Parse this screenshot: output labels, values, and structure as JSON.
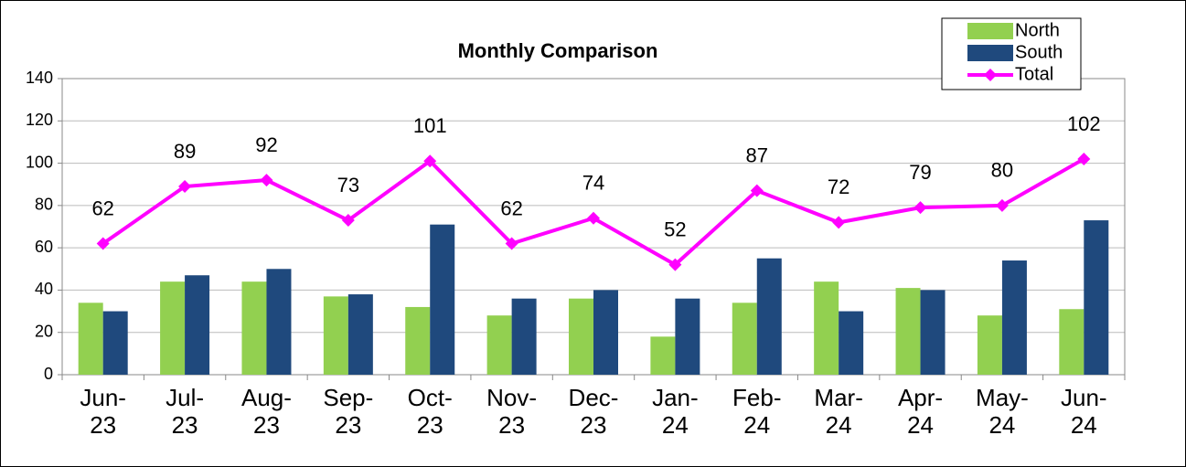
{
  "chart_data": {
    "type": "bar_line",
    "title": "Monthly Comparison",
    "categories": [
      "Jun-23",
      "Jul-23",
      "Aug-23",
      "Sep-23",
      "Oct-23",
      "Nov-23",
      "Dec-23",
      "Jan-24",
      "Feb-24",
      "Mar-24",
      "Apr-24",
      "May-24",
      "Jun-24"
    ],
    "series": [
      {
        "name": "North",
        "type": "bar",
        "color": "#92d050",
        "values": [
          34,
          44,
          44,
          37,
          32,
          28,
          36,
          18,
          34,
          44,
          41,
          28,
          31
        ]
      },
      {
        "name": "South",
        "type": "bar",
        "color": "#1f497d",
        "values": [
          30,
          47,
          50,
          38,
          71,
          36,
          40,
          36,
          55,
          30,
          40,
          54,
          73
        ]
      },
      {
        "name": "Total",
        "type": "line",
        "color": "#ff00ff",
        "values": [
          62,
          89,
          92,
          73,
          101,
          62,
          74,
          52,
          87,
          72,
          79,
          80,
          102
        ]
      }
    ],
    "ylim": [
      0,
      140
    ],
    "yticks": [
      0,
      20,
      40,
      60,
      80,
      100,
      120,
      140
    ],
    "grid": true,
    "legend": "top-right"
  }
}
